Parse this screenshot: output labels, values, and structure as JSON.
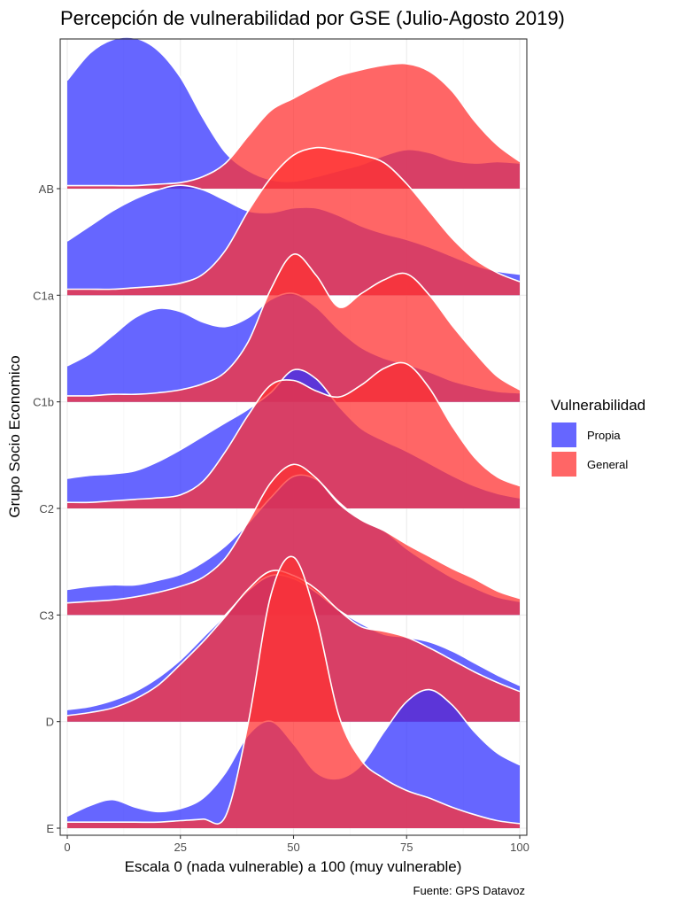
{
  "chart_data": {
    "type": "area",
    "title": "Percepción de vulnerabilidad por GSE (Julio-Agosto 2019)",
    "xlabel": "Escala 0 (nada vulnerable) a 100 (muy vulnerable)",
    "ylabel": "Grupo Socio Economico",
    "caption": "Fuente: GPS Datavoz",
    "xlim": [
      0,
      100
    ],
    "x_ticks": [
      0,
      25,
      50,
      75,
      100
    ],
    "groups": [
      "AB",
      "C1a",
      "C1b",
      "C2",
      "C3",
      "D",
      "E"
    ],
    "legend": {
      "title": "Vulnerabilidad",
      "placement": "right",
      "items": [
        {
          "name": "Propia",
          "color": "#3333ff"
        },
        {
          "name": "General",
          "color": "#ff3333"
        }
      ]
    },
    "grid": true,
    "series": [
      {
        "name": "Propia",
        "color": "#3333ff",
        "x": [
          0,
          5,
          10,
          15,
          20,
          25,
          30,
          35,
          40,
          45,
          50,
          55,
          60,
          65,
          70,
          75,
          80,
          85,
          90,
          95,
          100
        ],
        "densities": {
          "AB": [
            0.72,
            0.9,
            0.99,
            1.0,
            0.92,
            0.74,
            0.47,
            0.24,
            0.12,
            0.06,
            0.05,
            0.08,
            0.12,
            0.16,
            0.22,
            0.26,
            0.24,
            0.19,
            0.17,
            0.18,
            0.17
          ],
          "C1a": [
            0.36,
            0.46,
            0.56,
            0.64,
            0.7,
            0.73,
            0.7,
            0.63,
            0.56,
            0.55,
            0.58,
            0.58,
            0.53,
            0.46,
            0.41,
            0.37,
            0.32,
            0.26,
            0.2,
            0.16,
            0.14
          ],
          "C1b": [
            0.24,
            0.32,
            0.44,
            0.56,
            0.62,
            0.6,
            0.53,
            0.5,
            0.56,
            0.68,
            0.72,
            0.63,
            0.48,
            0.36,
            0.29,
            0.25,
            0.2,
            0.14,
            0.1,
            0.07,
            0.06
          ],
          "C2": [
            0.2,
            0.22,
            0.23,
            0.25,
            0.31,
            0.39,
            0.48,
            0.57,
            0.66,
            0.77,
            0.92,
            0.86,
            0.68,
            0.53,
            0.45,
            0.38,
            0.3,
            0.22,
            0.15,
            0.1,
            0.07
          ],
          "C3": [
            0.17,
            0.19,
            0.2,
            0.2,
            0.23,
            0.27,
            0.35,
            0.46,
            0.61,
            0.78,
            0.92,
            0.9,
            0.75,
            0.63,
            0.56,
            0.44,
            0.34,
            0.25,
            0.18,
            0.12,
            0.09
          ],
          "D": [
            0.08,
            0.1,
            0.14,
            0.2,
            0.29,
            0.41,
            0.56,
            0.71,
            0.87,
            0.97,
            0.95,
            0.86,
            0.74,
            0.65,
            0.58,
            0.56,
            0.53,
            0.47,
            0.39,
            0.31,
            0.24
          ],
          "E": [
            0.08,
            0.15,
            0.19,
            0.14,
            0.11,
            0.13,
            0.2,
            0.37,
            0.62,
            0.71,
            0.56,
            0.37,
            0.33,
            0.42,
            0.64,
            0.84,
            0.92,
            0.82,
            0.64,
            0.5,
            0.42
          ]
        }
      },
      {
        "name": "General",
        "color": "#ff3333",
        "x": [
          0,
          5,
          10,
          15,
          20,
          25,
          30,
          35,
          40,
          45,
          50,
          55,
          60,
          65,
          70,
          75,
          80,
          85,
          90,
          95,
          100
        ],
        "densities": {
          "AB": [
            0.02,
            0.02,
            0.02,
            0.02,
            0.03,
            0.04,
            0.08,
            0.17,
            0.35,
            0.52,
            0.6,
            0.68,
            0.75,
            0.79,
            0.82,
            0.83,
            0.78,
            0.65,
            0.45,
            0.29,
            0.18
          ],
          "C1a": [
            0.04,
            0.04,
            0.04,
            0.05,
            0.06,
            0.08,
            0.14,
            0.3,
            0.56,
            0.78,
            0.93,
            0.98,
            0.96,
            0.93,
            0.88,
            0.74,
            0.56,
            0.38,
            0.24,
            0.15,
            0.09
          ],
          "C1b": [
            0.04,
            0.04,
            0.05,
            0.05,
            0.06,
            0.08,
            0.12,
            0.2,
            0.4,
            0.75,
            0.98,
            0.84,
            0.63,
            0.72,
            0.81,
            0.85,
            0.71,
            0.51,
            0.33,
            0.17,
            0.08
          ],
          "C2": [
            0.04,
            0.04,
            0.05,
            0.06,
            0.07,
            0.09,
            0.18,
            0.38,
            0.62,
            0.82,
            0.85,
            0.78,
            0.74,
            0.82,
            0.93,
            0.96,
            0.8,
            0.55,
            0.34,
            0.21,
            0.15
          ],
          "C3": [
            0.08,
            0.09,
            0.1,
            0.12,
            0.15,
            0.19,
            0.25,
            0.38,
            0.62,
            0.88,
            1.0,
            0.91,
            0.74,
            0.63,
            0.56,
            0.47,
            0.39,
            0.31,
            0.24,
            0.16,
            0.11
          ],
          "D": [
            0.04,
            0.06,
            0.09,
            0.15,
            0.24,
            0.38,
            0.53,
            0.7,
            0.88,
            1.0,
            0.97,
            0.88,
            0.74,
            0.63,
            0.6,
            0.56,
            0.49,
            0.41,
            0.33,
            0.26,
            0.2
          ],
          "E": [
            0.04,
            0.04,
            0.04,
            0.04,
            0.04,
            0.05,
            0.06,
            0.08,
            0.7,
            1.55,
            1.8,
            1.4,
            0.75,
            0.45,
            0.33,
            0.25,
            0.2,
            0.14,
            0.09,
            0.05,
            0.03
          ]
        }
      }
    ]
  }
}
